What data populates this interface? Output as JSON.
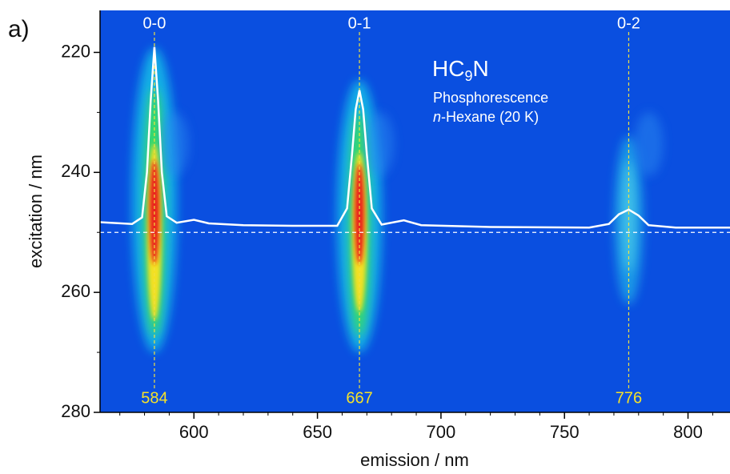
{
  "chart_data": {
    "type": "heatmap",
    "panel_label": "a)",
    "xlabel": "emission / nm",
    "ylabel": "excitation / nm",
    "annotation": {
      "formula": [
        "HC",
        "9",
        "N"
      ],
      "line1": "Phosphorescence",
      "line2": [
        "n",
        "-Hexane (20 K)"
      ]
    },
    "xlim": [
      562,
      817
    ],
    "xticks": [
      600,
      650,
      700,
      750,
      800
    ],
    "xminor": [
      570,
      580,
      590,
      610,
      620,
      630,
      640,
      660,
      670,
      680,
      690,
      710,
      720,
      730,
      740,
      760,
      770,
      780,
      790,
      810
    ],
    "ylim": [
      213,
      280
    ],
    "yticks": [
      220,
      240,
      260,
      280
    ],
    "yminor": [
      230,
      250,
      270
    ],
    "excitation_line": 250,
    "peaks": [
      {
        "label": "0-0",
        "position": 584
      },
      {
        "label": "0-1",
        "position": 667
      },
      {
        "label": "0-2",
        "position": 776
      }
    ],
    "spectrum": {
      "color": "#ffffff",
      "x": [
        562,
        575,
        579,
        581,
        582.5,
        584,
        585.5,
        587,
        589,
        593,
        600,
        606,
        620,
        640,
        658,
        662,
        664,
        665.5,
        667,
        668.5,
        670,
        672,
        676,
        685,
        692,
        720,
        760,
        768,
        772,
        776,
        780,
        784,
        795,
        817
      ],
      "values": [
        248.3,
        248.6,
        247.5,
        240,
        228,
        219.1,
        228,
        240,
        247.3,
        248.4,
        247.9,
        248.5,
        248.8,
        248.9,
        248.9,
        246,
        237,
        229.5,
        226.3,
        229.5,
        237,
        246,
        248.7,
        248.0,
        248.8,
        249.1,
        249.2,
        248.6,
        247,
        246.2,
        247.2,
        248.8,
        249.2,
        249.2
      ]
    }
  }
}
